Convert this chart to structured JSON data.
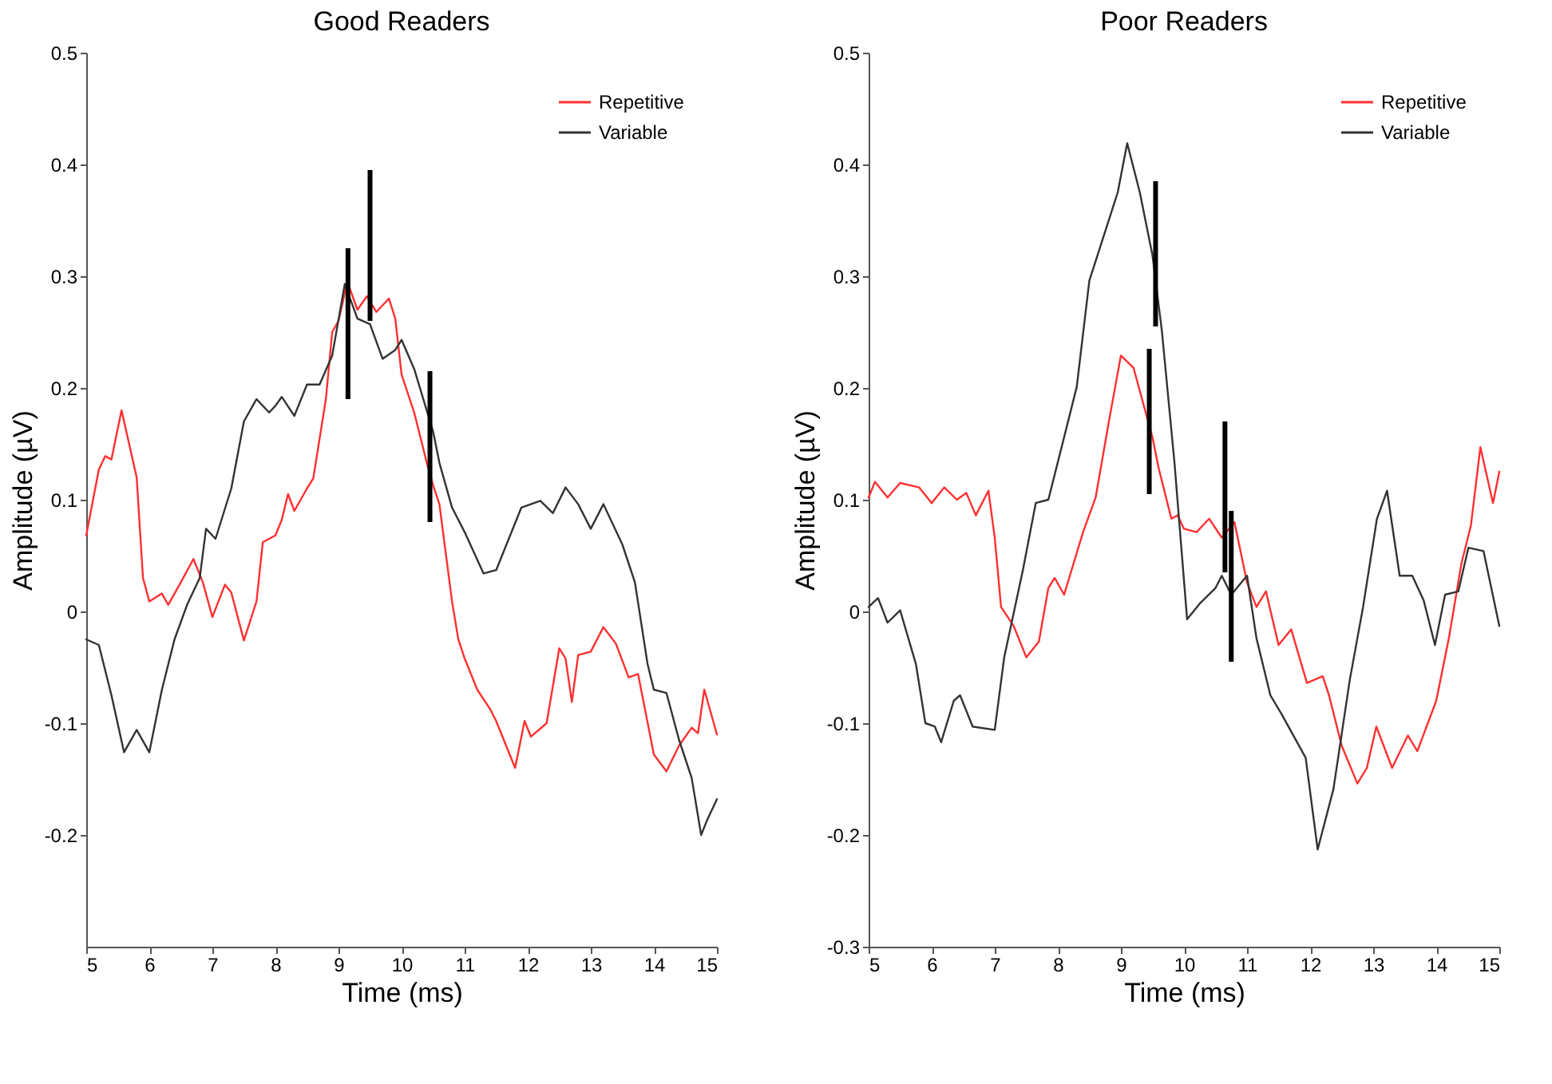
{
  "chart_data": [
    {
      "type": "line",
      "title": "Good Readers",
      "xlabel": "Time (ms)",
      "ylabel": "Amplitude (µV)",
      "xlim": [
        5,
        15
      ],
      "xticks": [
        5,
        6,
        7,
        8,
        9,
        10,
        11,
        12,
        13,
        14,
        15
      ],
      "ylim": [
        -0.3,
        0.5
      ],
      "yticks": [
        -0.2,
        -0.1,
        0,
        0.1,
        0.2,
        0.3,
        0.4,
        0.5
      ],
      "grid": false,
      "legend": "top right",
      "line_style": "solid",
      "marker": "none",
      "series": [
        {
          "name": "Repetitive",
          "color": "#ff3030",
          "x": [
            5.0,
            5.2,
            5.3,
            5.4,
            5.56,
            5.8,
            5.9,
            6.0,
            6.2,
            6.3,
            6.5,
            6.7,
            6.85,
            7.0,
            7.2,
            7.3,
            7.5,
            7.7,
            7.8,
            8.0,
            8.1,
            8.2,
            8.3,
            8.5,
            8.6,
            8.8,
            8.9,
            9.0,
            9.14,
            9.3,
            9.45,
            9.6,
            9.8,
            9.9,
            10.0,
            10.2,
            10.4,
            10.5,
            10.6,
            10.8,
            10.9,
            11.0,
            11.2,
            11.4,
            11.5,
            11.8,
            11.95,
            12.05,
            12.3,
            12.5,
            12.6,
            12.7,
            12.8,
            13.0,
            13.2,
            13.4,
            13.6,
            13.75,
            14.0,
            14.2,
            14.4,
            14.6,
            14.7,
            14.8,
            15.0
          ],
          "values": [
            0.068,
            0.127,
            0.139,
            0.136,
            0.18,
            0.12,
            0.03,
            0.009,
            0.016,
            0.006,
            0.026,
            0.047,
            0.026,
            -0.005,
            0.024,
            0.017,
            -0.026,
            0.009,
            0.062,
            0.068,
            0.082,
            0.105,
            0.09,
            0.11,
            0.119,
            0.19,
            0.25,
            0.26,
            0.295,
            0.27,
            0.282,
            0.268,
            0.28,
            0.262,
            0.212,
            0.178,
            0.133,
            0.113,
            0.096,
            0.009,
            -0.025,
            -0.042,
            -0.07,
            -0.087,
            -0.098,
            -0.14,
            -0.098,
            -0.112,
            -0.1,
            -0.033,
            -0.042,
            -0.081,
            -0.039,
            -0.036,
            -0.014,
            -0.029,
            -0.059,
            -0.056,
            -0.128,
            -0.143,
            -0.12,
            -0.104,
            -0.109,
            -0.07,
            -0.11
          ]
        },
        {
          "name": "Variable",
          "color": "#333333",
          "x": [
            5.0,
            5.2,
            5.4,
            5.6,
            5.8,
            6.0,
            6.2,
            6.4,
            6.6,
            6.8,
            6.9,
            7.05,
            7.3,
            7.5,
            7.7,
            7.9,
            8.0,
            8.1,
            8.3,
            8.5,
            8.7,
            8.9,
            9.1,
            9.3,
            9.5,
            9.7,
            9.9,
            10.0,
            10.2,
            10.5,
            10.6,
            10.8,
            11.0,
            11.3,
            11.5,
            11.7,
            11.9,
            12.2,
            12.4,
            12.6,
            12.8,
            13.0,
            13.2,
            13.5,
            13.7,
            13.9,
            14.0,
            14.2,
            14.4,
            14.6,
            14.75,
            14.85,
            15.0
          ],
          "values": [
            -0.025,
            -0.03,
            -0.075,
            -0.126,
            -0.106,
            -0.126,
            -0.07,
            -0.025,
            0.006,
            0.03,
            0.074,
            0.065,
            0.11,
            0.17,
            0.19,
            0.178,
            0.184,
            0.192,
            0.175,
            0.203,
            0.203,
            0.229,
            0.293,
            0.262,
            0.257,
            0.226,
            0.234,
            0.243,
            0.217,
            0.161,
            0.133,
            0.093,
            0.071,
            0.034,
            0.037,
            0.065,
            0.093,
            0.099,
            0.088,
            0.111,
            0.096,
            0.074,
            0.096,
            0.06,
            0.026,
            -0.047,
            -0.07,
            -0.073,
            -0.115,
            -0.149,
            -0.2,
            -0.186,
            -0.168
          ]
        },
        {
          "type": "bar",
          "color": "#000000",
          "x": [
            9.15,
            9.5,
            10.45
          ],
          "base": [
            0.19,
            0.26,
            0.08
          ],
          "values": [
            0.135,
            0.135,
            0.135
          ]
        }
      ]
    },
    {
      "type": "line",
      "title": "Poor Readers",
      "xlabel": "Time (ms)",
      "ylabel": "Amplitude (µV)",
      "xlim": [
        5,
        15
      ],
      "xticks": [
        5,
        6,
        7,
        8,
        9,
        10,
        11,
        12,
        13,
        14,
        15
      ],
      "ylim": [
        -0.3,
        0.5
      ],
      "yticks": [
        -0.3,
        -0.2,
        -0.1,
        0,
        0.1,
        0.2,
        0.3,
        0.4,
        0.5
      ],
      "grid": false,
      "legend": "top right",
      "line_style": "solid",
      "marker": "none",
      "series": [
        {
          "name": "Repetitive",
          "color": "#ff3030",
          "x": [
            5.0,
            5.1,
            5.3,
            5.5,
            5.8,
            6.0,
            6.2,
            6.4,
            6.55,
            6.7,
            6.9,
            7.0,
            7.1,
            7.3,
            7.5,
            7.7,
            7.85,
            7.95,
            8.1,
            8.4,
            8.6,
            8.8,
            9.0,
            9.2,
            9.5,
            9.6,
            9.8,
            9.9,
            10.0,
            10.2,
            10.4,
            10.6,
            10.8,
            11.0,
            11.15,
            11.3,
            11.5,
            11.7,
            11.95,
            12.2,
            12.3,
            12.5,
            12.75,
            12.9,
            13.05,
            13.3,
            13.55,
            13.7,
            14.0,
            14.2,
            14.4,
            14.55,
            14.7,
            14.9,
            15.0
          ],
          "values": [
            0.102,
            0.116,
            0.102,
            0.115,
            0.111,
            0.097,
            0.111,
            0.1,
            0.106,
            0.086,
            0.108,
            0.066,
            0.004,
            -0.013,
            -0.041,
            -0.027,
            0.021,
            0.03,
            0.015,
            0.071,
            0.102,
            0.167,
            0.229,
            0.218,
            0.156,
            0.128,
            0.083,
            0.086,
            0.074,
            0.071,
            0.083,
            0.066,
            0.08,
            0.026,
            0.004,
            0.018,
            -0.03,
            -0.016,
            -0.064,
            -0.058,
            -0.075,
            -0.12,
            -0.154,
            -0.14,
            -0.103,
            -0.14,
            -0.111,
            -0.125,
            -0.08,
            -0.024,
            0.043,
            0.077,
            0.147,
            0.097,
            0.125
          ]
        },
        {
          "name": "Variable",
          "color": "#333333",
          "x": [
            5.0,
            5.15,
            5.3,
            5.5,
            5.75,
            5.9,
            6.05,
            6.15,
            6.35,
            6.45,
            6.65,
            7.0,
            7.15,
            7.45,
            7.65,
            7.85,
            8.1,
            8.3,
            8.5,
            8.95,
            9.1,
            9.3,
            9.5,
            9.65,
            9.85,
            10.05,
            10.25,
            10.5,
            10.6,
            10.75,
            11.0,
            11.15,
            11.37,
            11.55,
            11.93,
            12.12,
            12.37,
            12.63,
            12.84,
            13.06,
            13.22,
            13.42,
            13.62,
            13.8,
            13.98,
            14.14,
            14.35,
            14.51,
            14.75,
            15.0
          ],
          "values": [
            0.004,
            0.012,
            -0.01,
            0.001,
            -0.047,
            -0.1,
            -0.103,
            -0.117,
            -0.08,
            -0.075,
            -0.103,
            -0.106,
            -0.041,
            0.038,
            0.097,
            0.1,
            0.156,
            0.201,
            0.296,
            0.375,
            0.419,
            0.375,
            0.319,
            0.251,
            0.133,
            -0.007,
            0.007,
            0.021,
            0.032,
            0.015,
            0.032,
            -0.024,
            -0.075,
            -0.092,
            -0.131,
            -0.213,
            -0.159,
            -0.061,
            0.004,
            0.083,
            0.108,
            0.032,
            0.032,
            0.01,
            -0.03,
            0.015,
            0.018,
            0.057,
            0.054,
            -0.013
          ]
        },
        {
          "type": "bar",
          "color": "#000000",
          "x": [
            9.45,
            9.55,
            10.65,
            10.75
          ],
          "base": [
            0.105,
            0.255,
            0.035,
            -0.045
          ],
          "values": [
            0.13,
            0.13,
            0.135,
            0.135
          ]
        }
      ]
    }
  ]
}
